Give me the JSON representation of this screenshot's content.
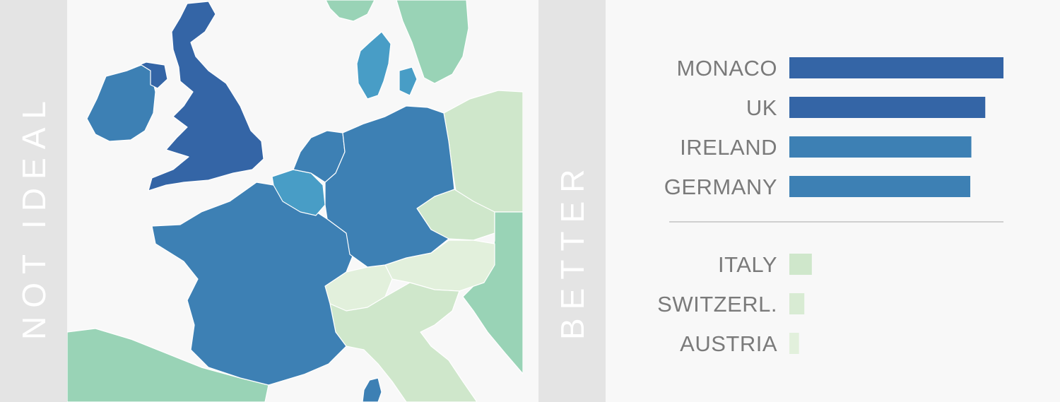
{
  "axis": {
    "left_label": "NOT IDEAL",
    "right_label": "BETTER"
  },
  "colors": {
    "dark_blue": "#3465a6",
    "mid_blue": "#3d80b4",
    "light_blue": "#489dc6",
    "green_teal": "#99d3b6",
    "pale_green": "#cfe7cb",
    "very_pale_green": "#e2f0dc",
    "divider": "#cfcfcf",
    "strip": "#e4e4e4"
  },
  "map": {
    "regions": [
      {
        "name": "uk",
        "color": "#3465a6"
      },
      {
        "name": "ireland",
        "color": "#3d80b4"
      },
      {
        "name": "france",
        "color": "#3d80b4"
      },
      {
        "name": "germany",
        "color": "#3d80b4"
      },
      {
        "name": "netherlands",
        "color": "#3d80b4"
      },
      {
        "name": "belgium",
        "color": "#489dc6"
      },
      {
        "name": "denmark",
        "color": "#489dc6"
      },
      {
        "name": "sweden",
        "color": "#99d3b6"
      },
      {
        "name": "poland",
        "color": "#cfe7cb"
      },
      {
        "name": "czechia",
        "color": "#cfe7cb"
      },
      {
        "name": "austria",
        "color": "#e2f0dc"
      },
      {
        "name": "switzerland",
        "color": "#e2f0dc"
      },
      {
        "name": "italy",
        "color": "#cfe7cb"
      },
      {
        "name": "spain",
        "color": "#99d3b6"
      },
      {
        "name": "balkans",
        "color": "#99d3b6"
      }
    ]
  },
  "chart_data": {
    "type": "bar",
    "orientation": "horizontal",
    "groups": [
      {
        "categories": [
          "MONACO",
          "UK",
          "IRELAND",
          "GERMANY"
        ],
        "values": [
          100,
          91.5,
          85,
          84.5
        ],
        "colors": [
          "#3465a6",
          "#3465a6",
          "#3d80b4",
          "#3d80b4"
        ]
      },
      {
        "categories": [
          "ITALY",
          "SWITZERL.",
          "AUSTRIA"
        ],
        "values": [
          10.5,
          7,
          4.5
        ],
        "colors": [
          "#cfe7cb",
          "#d8ebd3",
          "#e2f0dc"
        ]
      }
    ],
    "xlim": [
      0,
      100
    ],
    "grid": false,
    "legend": false
  }
}
